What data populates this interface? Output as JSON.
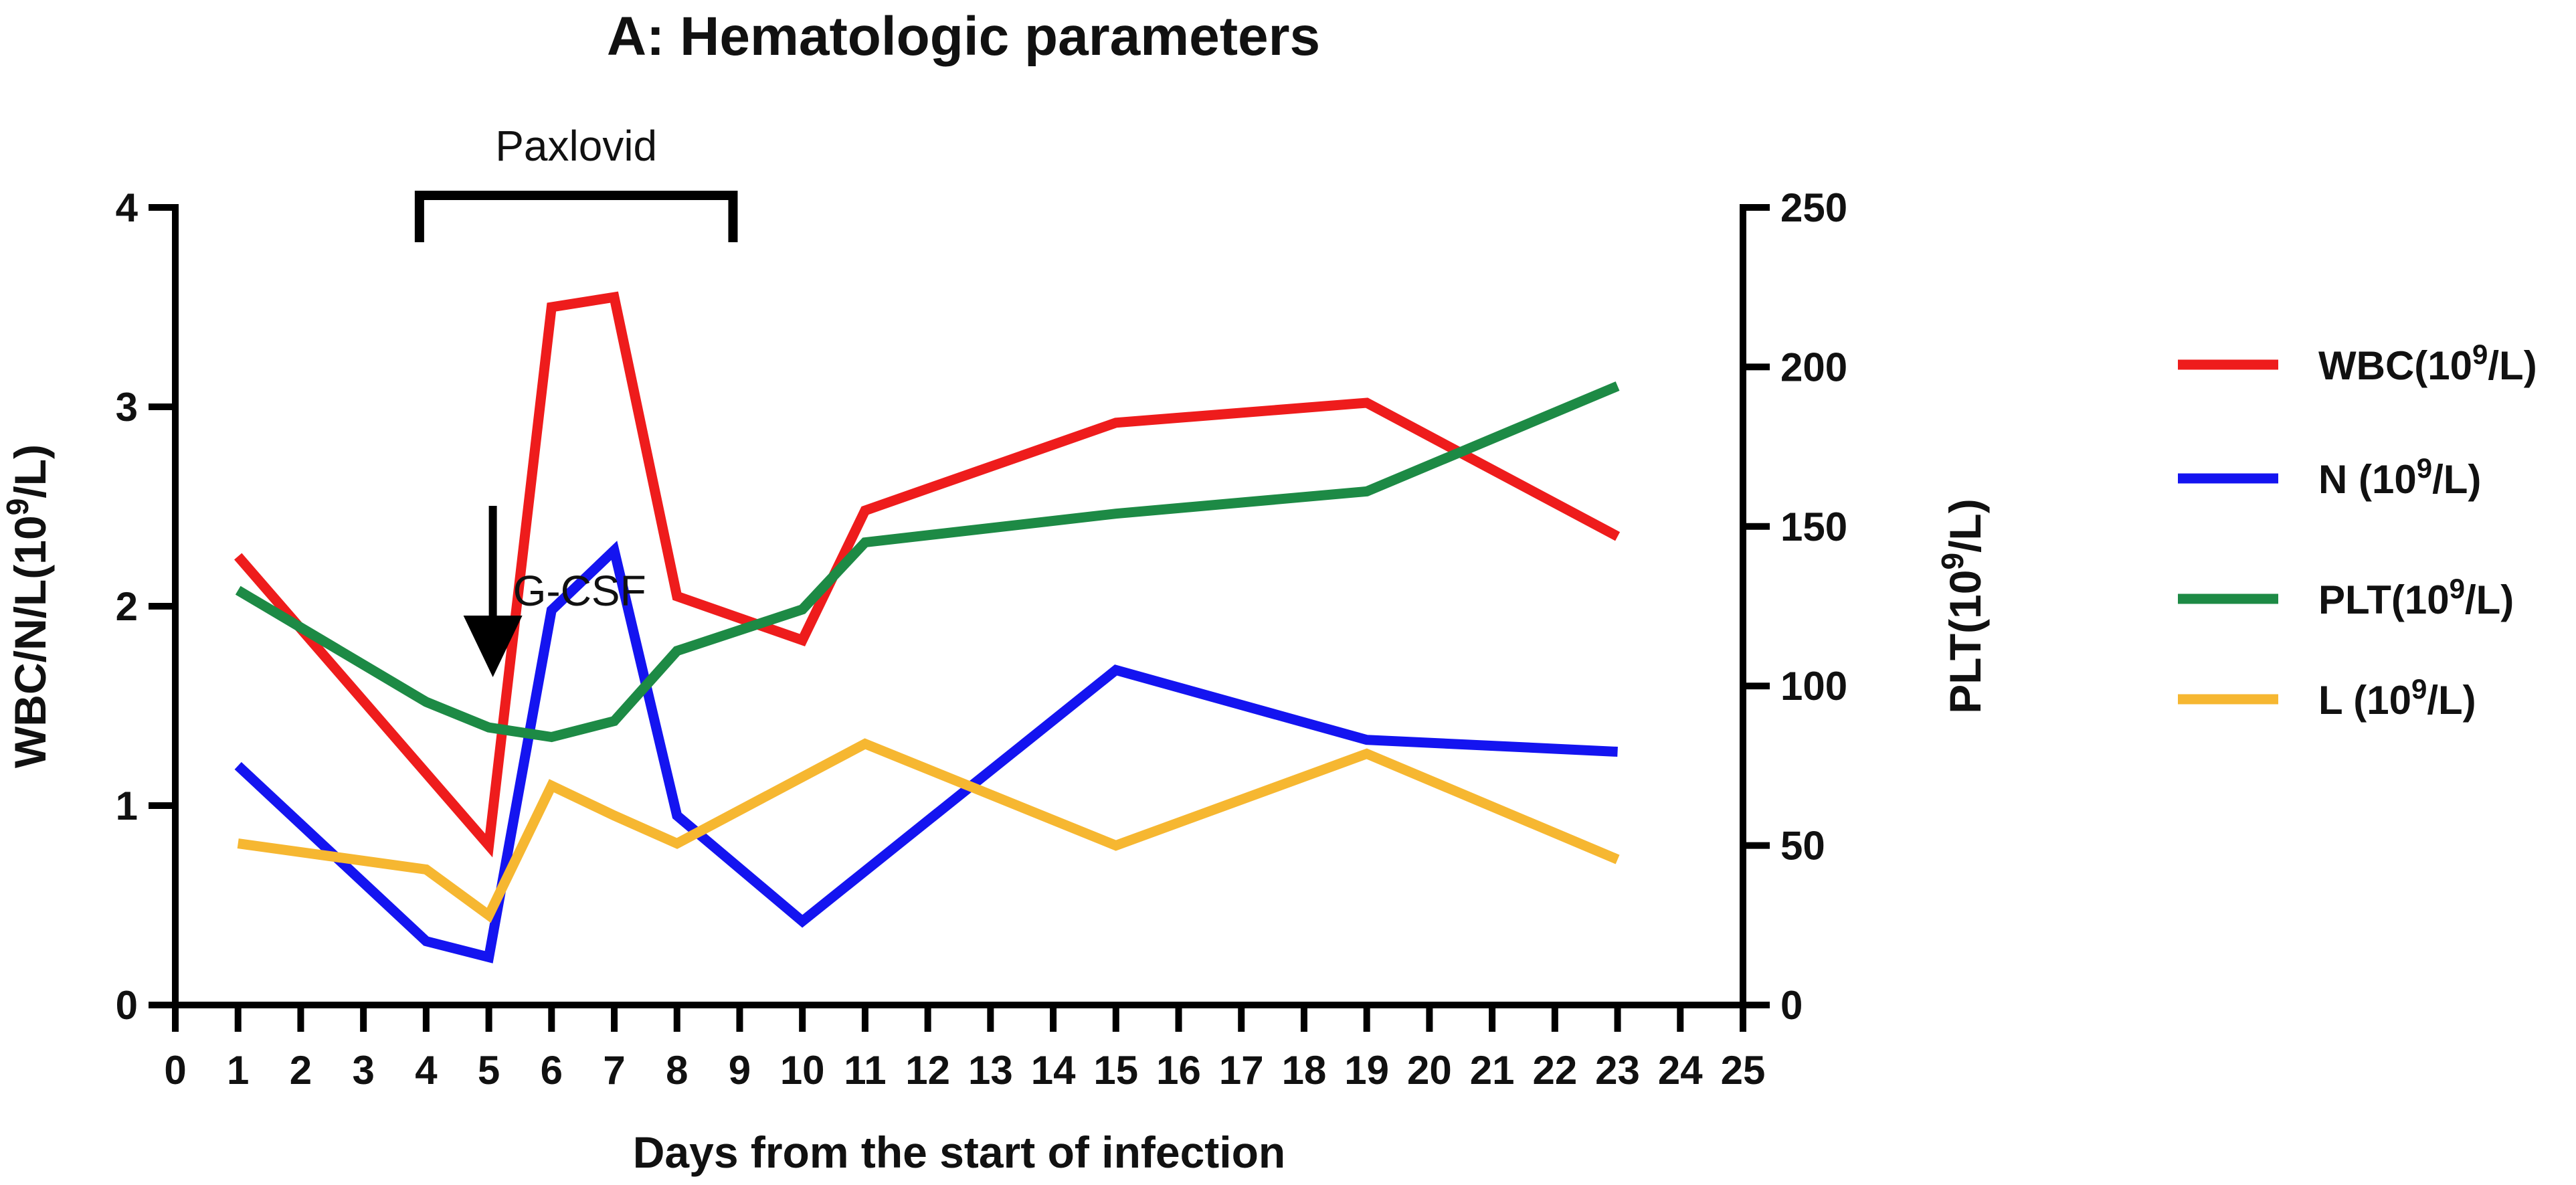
{
  "chart_data": {
    "type": "line",
    "title": "A: Hematologic parameters",
    "xlabel": "Days from the start of infection",
    "ylabel_left": {
      "main": "WBC/N/L(10",
      "sup": "9",
      "tail": "/L)"
    },
    "ylabel_right": {
      "main": "PLT(10",
      "sup": "9",
      "tail": "/L)"
    },
    "xlim": [
      0,
      25
    ],
    "ylim_left": [
      0,
      4
    ],
    "ylim_right": [
      0,
      250
    ],
    "x_ticks": [
      "0",
      "1",
      "2",
      "3",
      "4",
      "5",
      "6",
      "7",
      "8",
      "9",
      "10",
      "11",
      "12",
      "13",
      "14",
      "15",
      "16",
      "17",
      "18",
      "19",
      "20",
      "21",
      "22",
      "23",
      "24",
      "25"
    ],
    "y_left_ticks": [
      "0",
      "1",
      "2",
      "3",
      "4"
    ],
    "y_right_ticks": [
      "0",
      "50",
      "100",
      "150",
      "200",
      "250"
    ],
    "grid": false,
    "legend_position": "right",
    "series": [
      {
        "name": "WBC(10",
        "sup": "9",
        "tail": "/L)",
        "axis": "left",
        "color": "#ee1c1c",
        "x": [
          1,
          5,
          6,
          7,
          8,
          10,
          11,
          15,
          19,
          23
        ],
        "y": [
          2.25,
          0.8,
          3.5,
          3.55,
          2.05,
          1.83,
          2.48,
          2.92,
          3.02,
          2.35
        ]
      },
      {
        "name": "N (10",
        "sup": "9",
        "tail": "/L)",
        "axis": "left",
        "color": "#1414f0",
        "x": [
          1,
          4,
          5,
          6,
          7,
          8,
          10,
          15,
          19,
          23
        ],
        "y": [
          1.2,
          0.32,
          0.24,
          1.98,
          2.28,
          0.95,
          0.42,
          1.68,
          1.33,
          1.27
        ]
      },
      {
        "name": "PLT(10",
        "sup": "9",
        "tail": "/L)",
        "axis": "right",
        "color": "#1d8a45",
        "x": [
          1,
          4,
          5,
          6,
          7,
          8,
          10,
          11,
          15,
          19,
          23
        ],
        "y": [
          130,
          95,
          87,
          84,
          89,
          111,
          124,
          145,
          154,
          161,
          194
        ]
      },
      {
        "name": "L (10",
        "sup": "9",
        "tail": "/L)",
        "axis": "left",
        "color": "#f6b731",
        "x": [
          1,
          4,
          5,
          6,
          7,
          8,
          11,
          15,
          19,
          23
        ],
        "y": [
          0.81,
          0.68,
          0.45,
          1.1,
          0.95,
          0.81,
          1.31,
          0.8,
          1.26,
          0.73
        ]
      }
    ],
    "annotations": {
      "bracket": {
        "label": "Paxlovid",
        "x_start": 4,
        "x_end": 9
      },
      "arrow": {
        "label": "G-CSF",
        "x": 5
      }
    }
  }
}
